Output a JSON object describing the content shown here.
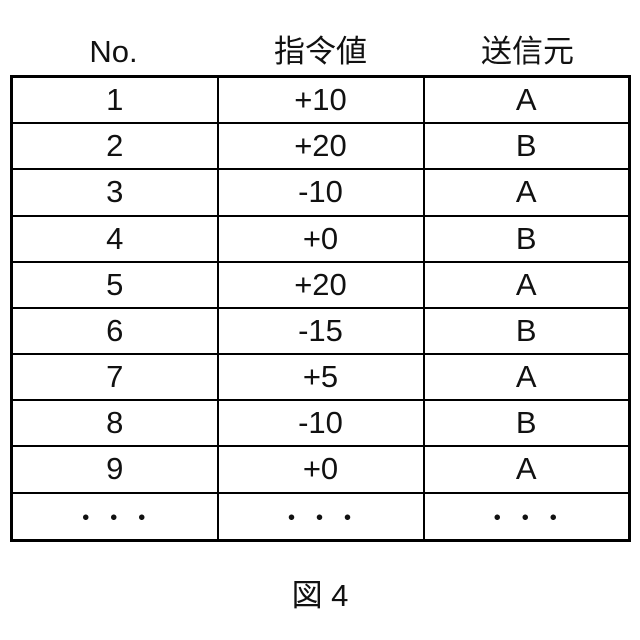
{
  "table": {
    "headers": [
      {
        "label": "No."
      },
      {
        "label": "指令値"
      },
      {
        "label": "送信元"
      }
    ],
    "rows": [
      {
        "no": "1",
        "value": "+10",
        "source": "A"
      },
      {
        "no": "2",
        "value": "+20",
        "source": "B"
      },
      {
        "no": "3",
        "value": "-10",
        "source": "A"
      },
      {
        "no": "4",
        "value": "+0",
        "source": "B"
      },
      {
        "no": "5",
        "value": "+20",
        "source": "A"
      },
      {
        "no": "6",
        "value": "-15",
        "source": "B"
      },
      {
        "no": "7",
        "value": "+5",
        "source": "A"
      },
      {
        "no": "8",
        "value": "-10",
        "source": "B"
      },
      {
        "no": "9",
        "value": "+0",
        "source": "A"
      },
      {
        "no": "・・・",
        "value": "・・・",
        "source": "・・・"
      }
    ]
  },
  "caption": {
    "label": "図 4"
  },
  "colors": {
    "background": "#ffffff",
    "border": "#000000",
    "text": "#111111"
  }
}
